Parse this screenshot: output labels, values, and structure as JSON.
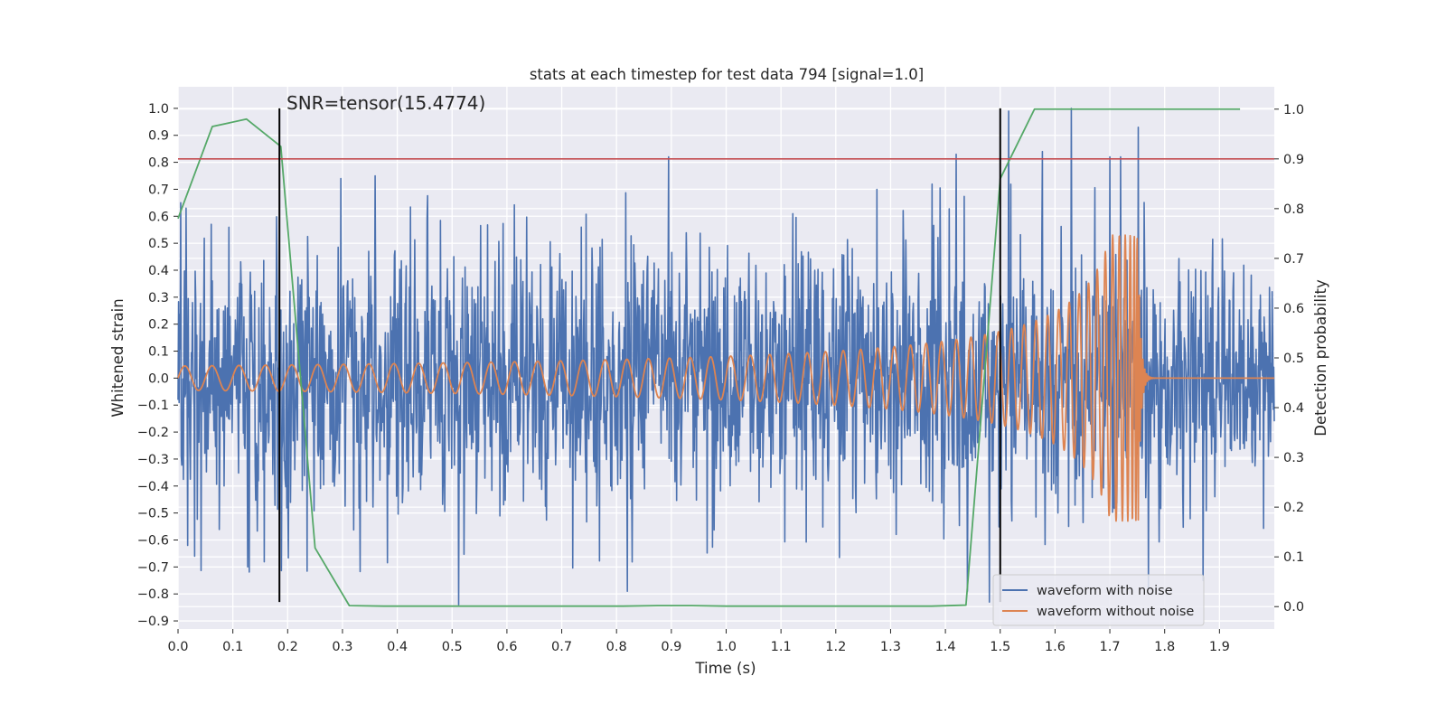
{
  "chart_data": {
    "type": "line",
    "title": "stats at each timestep for test data 794 [signal=1.0]",
    "xlabel": "Time (s)",
    "ylabel": "Whitened strain",
    "y2label": "Detection probability",
    "xlim": [
      0.0,
      2.0
    ],
    "ylim": [
      -0.93,
      1.08
    ],
    "y2lim": [
      -0.045,
      1.045
    ],
    "xticks": [
      0.0,
      0.1,
      0.2,
      0.3,
      0.4,
      0.5,
      0.6,
      0.7,
      0.8,
      0.9,
      1.0,
      1.1,
      1.2,
      1.3,
      1.4,
      1.5,
      1.6,
      1.7,
      1.8,
      1.9
    ],
    "xtick_labels": [
      "0.0",
      "0.1",
      "0.2",
      "0.3",
      "0.4",
      "0.5",
      "0.6",
      "0.7",
      "0.8",
      "0.9",
      "1.0",
      "1.1",
      "1.2",
      "1.3",
      "1.4",
      "1.5",
      "1.6",
      "1.7",
      "1.8",
      "1.9"
    ],
    "yticks": [
      1.0,
      0.9,
      0.8,
      0.7,
      0.6,
      0.5,
      0.4,
      0.3,
      0.2,
      0.1,
      0.0,
      -0.1,
      -0.2,
      -0.3,
      -0.4,
      -0.5,
      -0.6,
      -0.7,
      -0.8,
      -0.9
    ],
    "ytick_labels": [
      "1.0",
      "0.9",
      "0.8",
      "0.7",
      "0.6",
      "0.5",
      "0.4",
      "0.3",
      "0.2",
      "0.1",
      "0.0",
      "−0.1",
      "−0.2",
      "−0.3",
      "−0.4",
      "−0.5",
      "−0.6",
      "−0.7",
      "−0.8",
      "−0.9"
    ],
    "y2ticks": [
      1.0,
      0.9,
      0.8,
      0.7,
      0.6,
      0.5,
      0.4,
      0.3,
      0.2,
      0.1,
      0.0
    ],
    "y2tick_labels": [
      "1.0",
      "0.9",
      "0.8",
      "0.7",
      "0.6",
      "0.5",
      "0.4",
      "0.3",
      "0.2",
      "0.1",
      "0.0"
    ],
    "annotation": "SNR=tensor(15.4774)",
    "threshold_line": {
      "y": 0.9,
      "axis": "right",
      "color": "#c44e52"
    },
    "vertical_lines": [
      {
        "x": 0.185,
        "y_from": -0.83,
        "y_to": 1.0,
        "color": "#000000"
      },
      {
        "x": 1.5,
        "y_from": -0.83,
        "y_to": 1.0,
        "color": "#000000"
      }
    ],
    "series": [
      {
        "name": "waveform with noise",
        "color": "#4c72b0",
        "axis": "left",
        "kind": "noise",
        "x_range": [
          0.0,
          2.0
        ],
        "n_points": 2048,
        "std": 0.25,
        "peaks": [
          {
            "x": 0.005,
            "y": 0.65
          },
          {
            "x": 0.015,
            "y": 0.63
          },
          {
            "x": 0.018,
            "y": -0.62
          },
          {
            "x": 0.03,
            "y": -0.66
          },
          {
            "x": 0.297,
            "y": 0.74
          },
          {
            "x": 0.36,
            "y": 0.75
          },
          {
            "x": 0.512,
            "y": -0.84
          },
          {
            "x": 0.82,
            "y": -0.79
          },
          {
            "x": 0.895,
            "y": 0.82
          },
          {
            "x": 1.42,
            "y": 0.83
          },
          {
            "x": 1.44,
            "y": -0.79
          },
          {
            "x": 1.48,
            "y": -0.83
          },
          {
            "x": 1.515,
            "y": 0.99
          },
          {
            "x": 1.577,
            "y": 0.84
          },
          {
            "x": 1.63,
            "y": 1.0
          },
          {
            "x": 1.7,
            "y": 0.82
          },
          {
            "x": 1.72,
            "y": 0.82
          },
          {
            "x": 1.752,
            "y": 0.93
          },
          {
            "x": 1.77,
            "y": -0.78
          },
          {
            "x": 1.87,
            "y": -0.75
          }
        ]
      },
      {
        "name": "waveform without noise",
        "color": "#dd8452",
        "axis": "left",
        "kind": "chirp",
        "x_range": [
          0.0,
          2.0
        ],
        "t_merge": 1.752,
        "f_start": 20,
        "amp_start": 0.045,
        "amp_peak": 0.53
      },
      {
        "name": "detection probability",
        "color": "#55a868",
        "axis": "right",
        "kind": "line",
        "x": [
          0.0,
          0.0625,
          0.125,
          0.1875,
          0.25,
          0.3125,
          0.375,
          0.4375,
          0.5,
          0.5625,
          0.625,
          0.6875,
          0.75,
          0.8125,
          0.875,
          0.9375,
          1.0,
          1.0625,
          1.125,
          1.1875,
          1.25,
          1.3125,
          1.375,
          1.4375,
          1.5,
          1.5625,
          1.625,
          1.6875,
          1.75,
          1.8125,
          1.875,
          1.9375
        ],
        "y": [
          0.78,
          0.965,
          0.98,
          0.925,
          0.118,
          0.002,
          0.001,
          0.001,
          0.001,
          0.001,
          0.001,
          0.001,
          0.001,
          0.001,
          0.002,
          0.002,
          0.001,
          0.001,
          0.001,
          0.001,
          0.001,
          0.001,
          0.001,
          0.003,
          0.86,
          1.0,
          1.0,
          1.0,
          1.0,
          1.0,
          1.0,
          1.0
        ]
      }
    ],
    "legend": {
      "position": "lower-right",
      "entries": [
        {
          "label": "waveform with noise",
          "color": "#4c72b0"
        },
        {
          "label": "waveform without noise",
          "color": "#dd8452"
        }
      ]
    }
  }
}
